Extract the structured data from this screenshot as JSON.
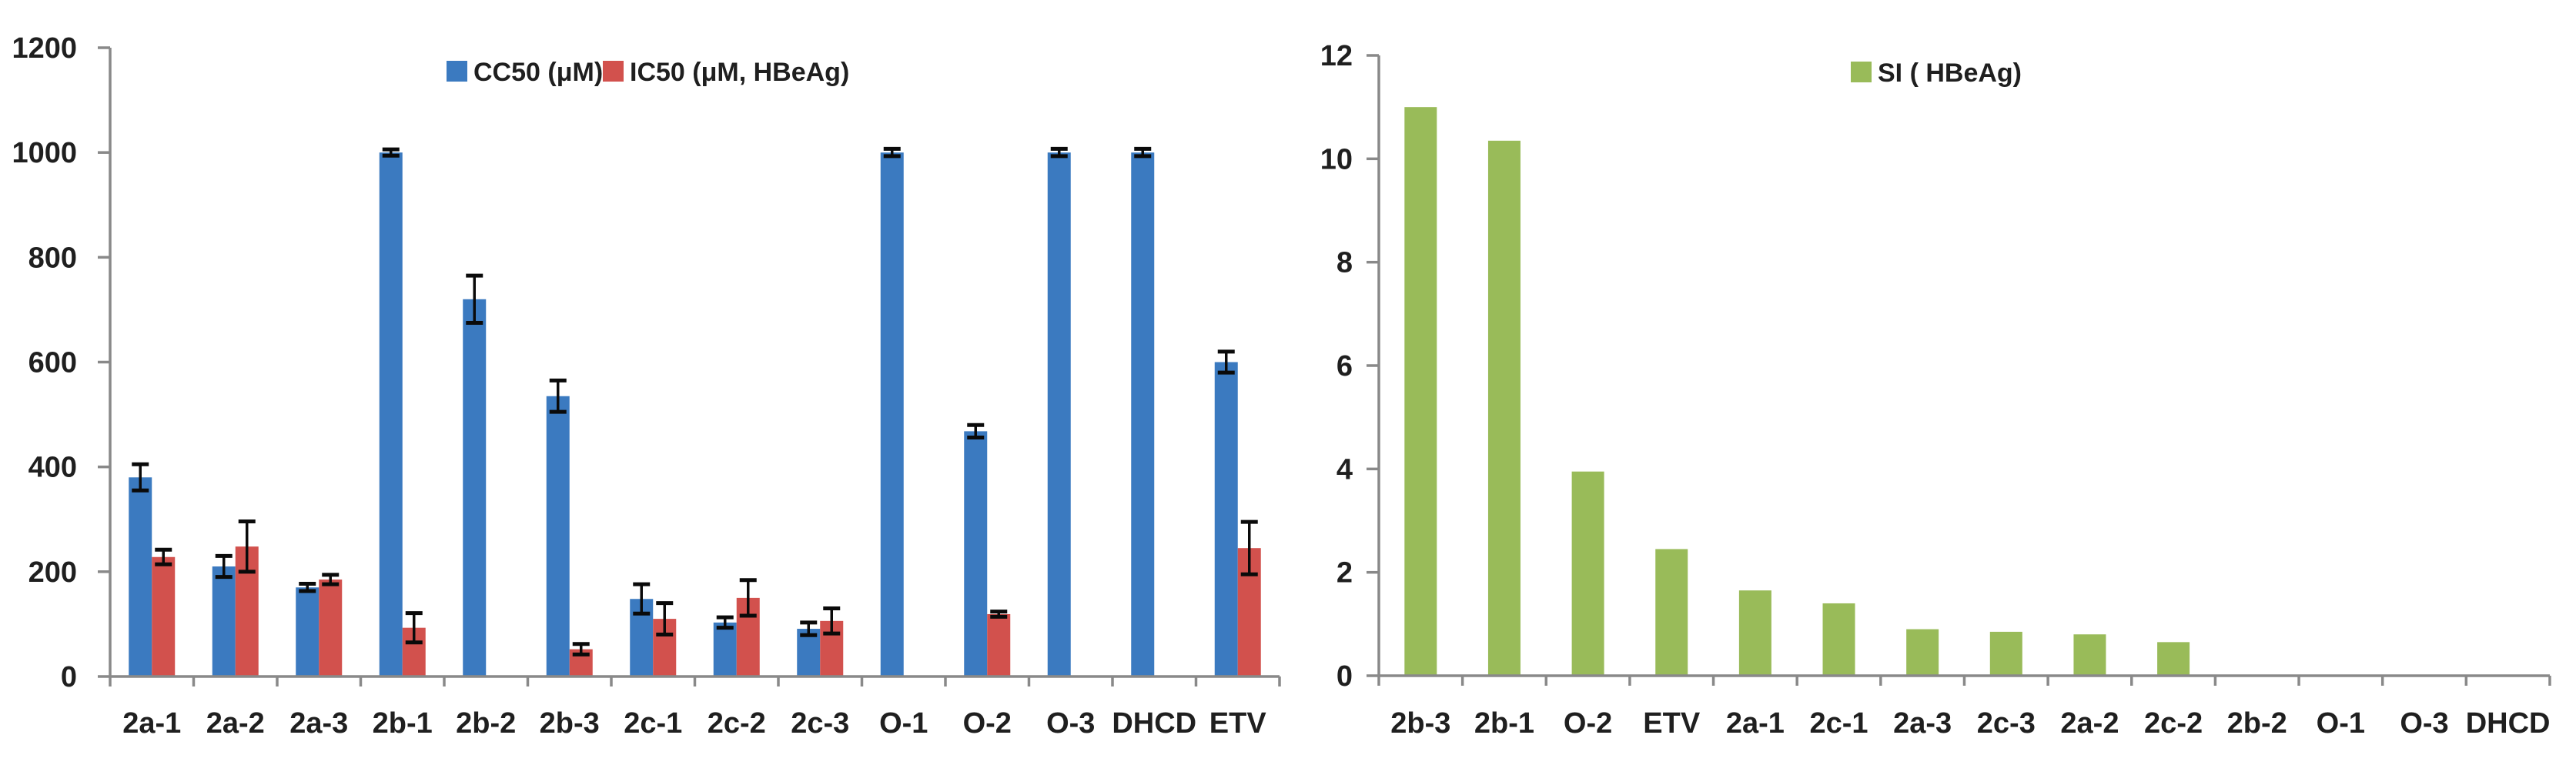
{
  "figure": {
    "background": "#ffffff",
    "colors": {
      "cc50_blue": "#3b7ac0",
      "ic50_red": "#d2514d",
      "si_green": "#99bb59",
      "axis_gray": "#898989",
      "error_black": "#0a0a0a",
      "text": "#1f1f1f"
    }
  },
  "chart_data": [
    {
      "id": "cytotoxicity-vs-inhibition",
      "type": "bar",
      "title": "",
      "xlabel": "",
      "ylabel": "",
      "grid": false,
      "legend_position": "top-center",
      "ylim": [
        0,
        1200
      ],
      "ytick_step": 200,
      "y_tick_labels": [
        "0",
        "200",
        "400",
        "600",
        "800",
        "1000",
        "1200"
      ],
      "categories": [
        "2a-1",
        "2a-2",
        "2a-3",
        "2b-1",
        "2b-2",
        "2b-3",
        "2c-1",
        "2c-2",
        "2c-3",
        "O-1",
        "O-2",
        "O-3",
        "DHCD",
        "ETV"
      ],
      "series": [
        {
          "name": "CC50 (μM)",
          "color": "#3b7ac0",
          "values": [
            380,
            210,
            170,
            1000,
            720,
            535,
            148,
            103,
            91,
            1000,
            468,
            1000,
            1000,
            600
          ],
          "errors": [
            25,
            20,
            7,
            6,
            45,
            30,
            28,
            10,
            12,
            7,
            12,
            7,
            7,
            20
          ]
        },
        {
          "name": "IC50 (μM, HBeAg)",
          "color": "#d2514d",
          "values": [
            228,
            248,
            185,
            93,
            null,
            52,
            110,
            150,
            106,
            null,
            119,
            null,
            null,
            245
          ],
          "errors": [
            14,
            48,
            9,
            28,
            null,
            10,
            30,
            34,
            24,
            null,
            5,
            null,
            null,
            50
          ]
        }
      ]
    },
    {
      "id": "selectivity-index",
      "type": "bar",
      "title": "",
      "xlabel": "",
      "ylabel": "",
      "grid": false,
      "legend_position": "top-center",
      "ylim": [
        0,
        12
      ],
      "ytick_step": 2,
      "y_tick_labels": [
        "0",
        "2",
        "4",
        "6",
        "8",
        "10",
        "12"
      ],
      "categories": [
        "2b-3",
        "2b-1",
        "O-2",
        "ETV",
        "2a-1",
        "2c-1",
        "2a-3",
        "2c-3",
        "2a-2",
        "2c-2",
        "2b-2",
        "O-1",
        "O-3",
        "DHCD"
      ],
      "series": [
        {
          "name": "SI ( HBeAg)",
          "color": "#99bb59",
          "values": [
            11.0,
            10.35,
            3.95,
            2.45,
            1.65,
            1.4,
            0.9,
            0.85,
            0.8,
            0.65,
            0,
            0,
            0,
            0
          ],
          "errors": [
            null,
            null,
            null,
            null,
            null,
            null,
            null,
            null,
            null,
            null,
            null,
            null,
            null,
            null
          ]
        }
      ]
    }
  ]
}
